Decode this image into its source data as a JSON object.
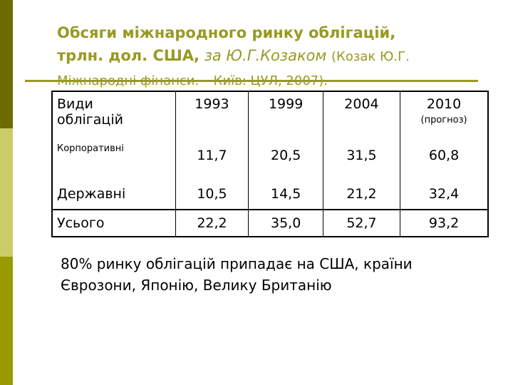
{
  "title": {
    "line1": "Обсяги міжнародного ринку облігацій,",
    "line2": "трлн. дол. США,",
    "italic": "за Ю.Г.Козаком",
    "source": "(Козак Ю.Г. Міжнародні фінанси. – Київ: ЦУЛ, 2007)."
  },
  "table": {
    "header": [
      "Види облігацій",
      "1993",
      "1999",
      "2004",
      "2010"
    ],
    "header_note": "(прогноз)",
    "rows": [
      [
        "Корпоративні",
        "11,7",
        "20,5",
        "31,5",
        "60,8"
      ],
      [
        "Державні",
        "10,5",
        "14,5",
        "21,2",
        "32,4"
      ],
      [
        "Усього",
        "22,2",
        "35,0",
        "52,7",
        "93,2"
      ]
    ]
  },
  "note": "80% ринку облігацій припадає на США, країни Єврозони, Японію, Велику Британію"
}
